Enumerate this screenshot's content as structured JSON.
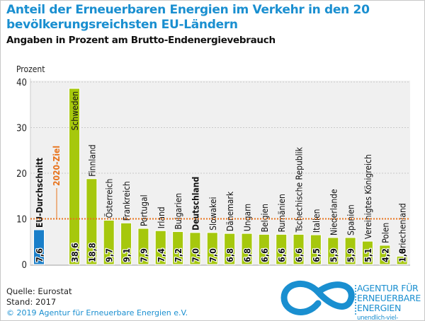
{
  "header": {
    "title": "Anteil der Erneuerbaren Energien im Verkehr in den 20 bevölkerungsreichsten EU-Ländern",
    "subtitle": "Angaben in Prozent am Brutto-Endenergievebrauch"
  },
  "footer": {
    "source": "Quelle: Eurostat",
    "status": "Stand: 2017",
    "copyright": "© 2019 Agentur für Erneuerbare Energien e.V."
  },
  "logo": {
    "line1": "AGENTUR FÜR",
    "line2": "ERNEUERBARE",
    "line3": "ENERGIEN",
    "url": "unendlich-viel-energie.de",
    "icon": "infinity-icon"
  },
  "chart_data": {
    "type": "bar",
    "ylabel": "Prozent",
    "ylim": [
      0,
      40
    ],
    "yticks": [
      0,
      10,
      20,
      30,
      40
    ],
    "grid": true,
    "categories": [
      "EU-Durchschnitt",
      "Schweden",
      "Finnland",
      "Österreich",
      "Frankreich",
      "Portugal",
      "Irland",
      "Bulgarien",
      "Deutschland",
      "Slowakei",
      "Dänemark",
      "Ungarn",
      "Belgien",
      "Rumänien",
      "Tschechische Republik",
      "Italien",
      "Niederlande",
      "Spanien",
      "Vereinigtes Königreich",
      "Polen",
      "Griechenland"
    ],
    "values": [
      7.6,
      38.6,
      18.8,
      9.7,
      9.1,
      7.9,
      7.4,
      7.2,
      7.0,
      7.0,
      6.8,
      6.8,
      6.6,
      6.6,
      6.6,
      6.5,
      5.9,
      5.9,
      5.1,
      4.2,
      1.8
    ],
    "value_labels": [
      "7,6",
      "38,6",
      "18,8",
      "9,7",
      "9,1",
      "7,9",
      "7,4",
      "7,2",
      "7,0",
      "7,0",
      "6,8",
      "6,8",
      "6,6",
      "6,6",
      "6,6",
      "6,5",
      "5,9",
      "5,9",
      "5,1",
      "4,2",
      "1,8"
    ],
    "bold_categories": [
      "EU-Durchschnitt",
      "Deutschland"
    ],
    "target_line": {
      "value": 10,
      "label": "2020-Ziel",
      "color": "#e8731c"
    },
    "colors": {
      "eu": "#1a7fc9",
      "countries": "#a6c80d",
      "plot_bg": "#f0f0f0"
    }
  }
}
